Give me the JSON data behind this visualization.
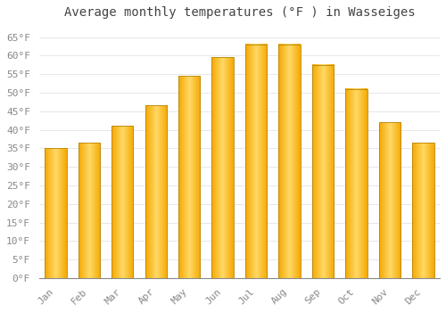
{
  "title": "Average monthly temperatures (°F ) in Wasseiges",
  "months": [
    "Jan",
    "Feb",
    "Mar",
    "Apr",
    "May",
    "Jun",
    "Jul",
    "Aug",
    "Sep",
    "Oct",
    "Nov",
    "Dec"
  ],
  "values": [
    35,
    36.5,
    41,
    46.5,
    54.5,
    59.5,
    63,
    63,
    57.5,
    51,
    42,
    36.5
  ],
  "bar_color_bottom": "#F5A800",
  "bar_color_top": "#FFD966",
  "bar_color_center": "#FFCA28",
  "bar_edge_color": "#B8860B",
  "background_color": "#FFFFFF",
  "grid_color": "#DDDDDD",
  "yticks": [
    0,
    5,
    10,
    15,
    20,
    25,
    30,
    35,
    40,
    45,
    50,
    55,
    60,
    65
  ],
  "ylim": [
    0,
    68
  ],
  "title_fontsize": 10,
  "tick_fontsize": 8,
  "tick_color": "#888888",
  "font_family": "monospace"
}
